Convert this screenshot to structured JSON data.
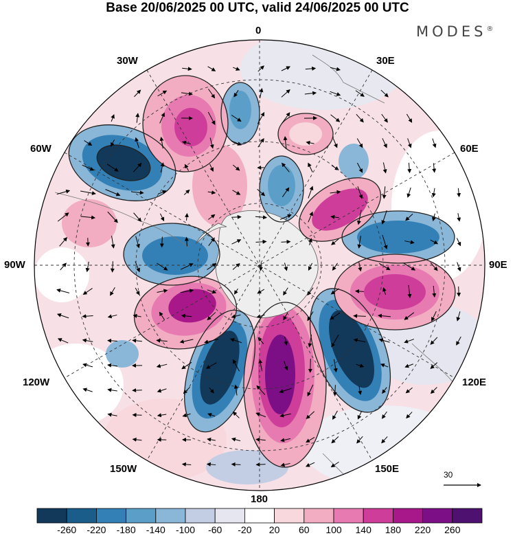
{
  "title": "Base 20/06/2025 00 UTC, valid 24/06/2025 00 UTC",
  "brand": "MODES",
  "brand_mark": "®",
  "longitude_labels": {
    "top": "0",
    "top_left": "30W",
    "top_right": "30E",
    "upper_left": "60W",
    "upper_right": "60E",
    "left": "90W",
    "right": "90E",
    "lower_left": "120W",
    "lower_right": "120E",
    "bottom_left": "150W",
    "bottom_right": "150E",
    "bottom": "180"
  },
  "reference_vector": "30",
  "colorbar": {
    "labels": [
      "-260",
      "-220",
      "-180",
      "-140",
      "-100",
      "-60",
      "-20",
      "20",
      "60",
      "100",
      "140",
      "180",
      "220",
      "260"
    ],
    "colors": [
      "#12385a",
      "#1b5d8a",
      "#3380b6",
      "#5b9fc9",
      "#8ab6d8",
      "#c3cde3",
      "#e6e6f0",
      "#ffffff",
      "#f8d8dc",
      "#f2adc3",
      "#e77ab0",
      "#cf3d9a",
      "#a8188a",
      "#7c0f85",
      "#4e1170"
    ]
  },
  "anomaly_colors": {
    "negative_strong": "#12385a",
    "negative": "#3380b6",
    "negative_light": "#c3cde3",
    "positive_light": "#f2adc3",
    "positive": "#cf3d9a",
    "positive_strong": "#7c0f85"
  }
}
